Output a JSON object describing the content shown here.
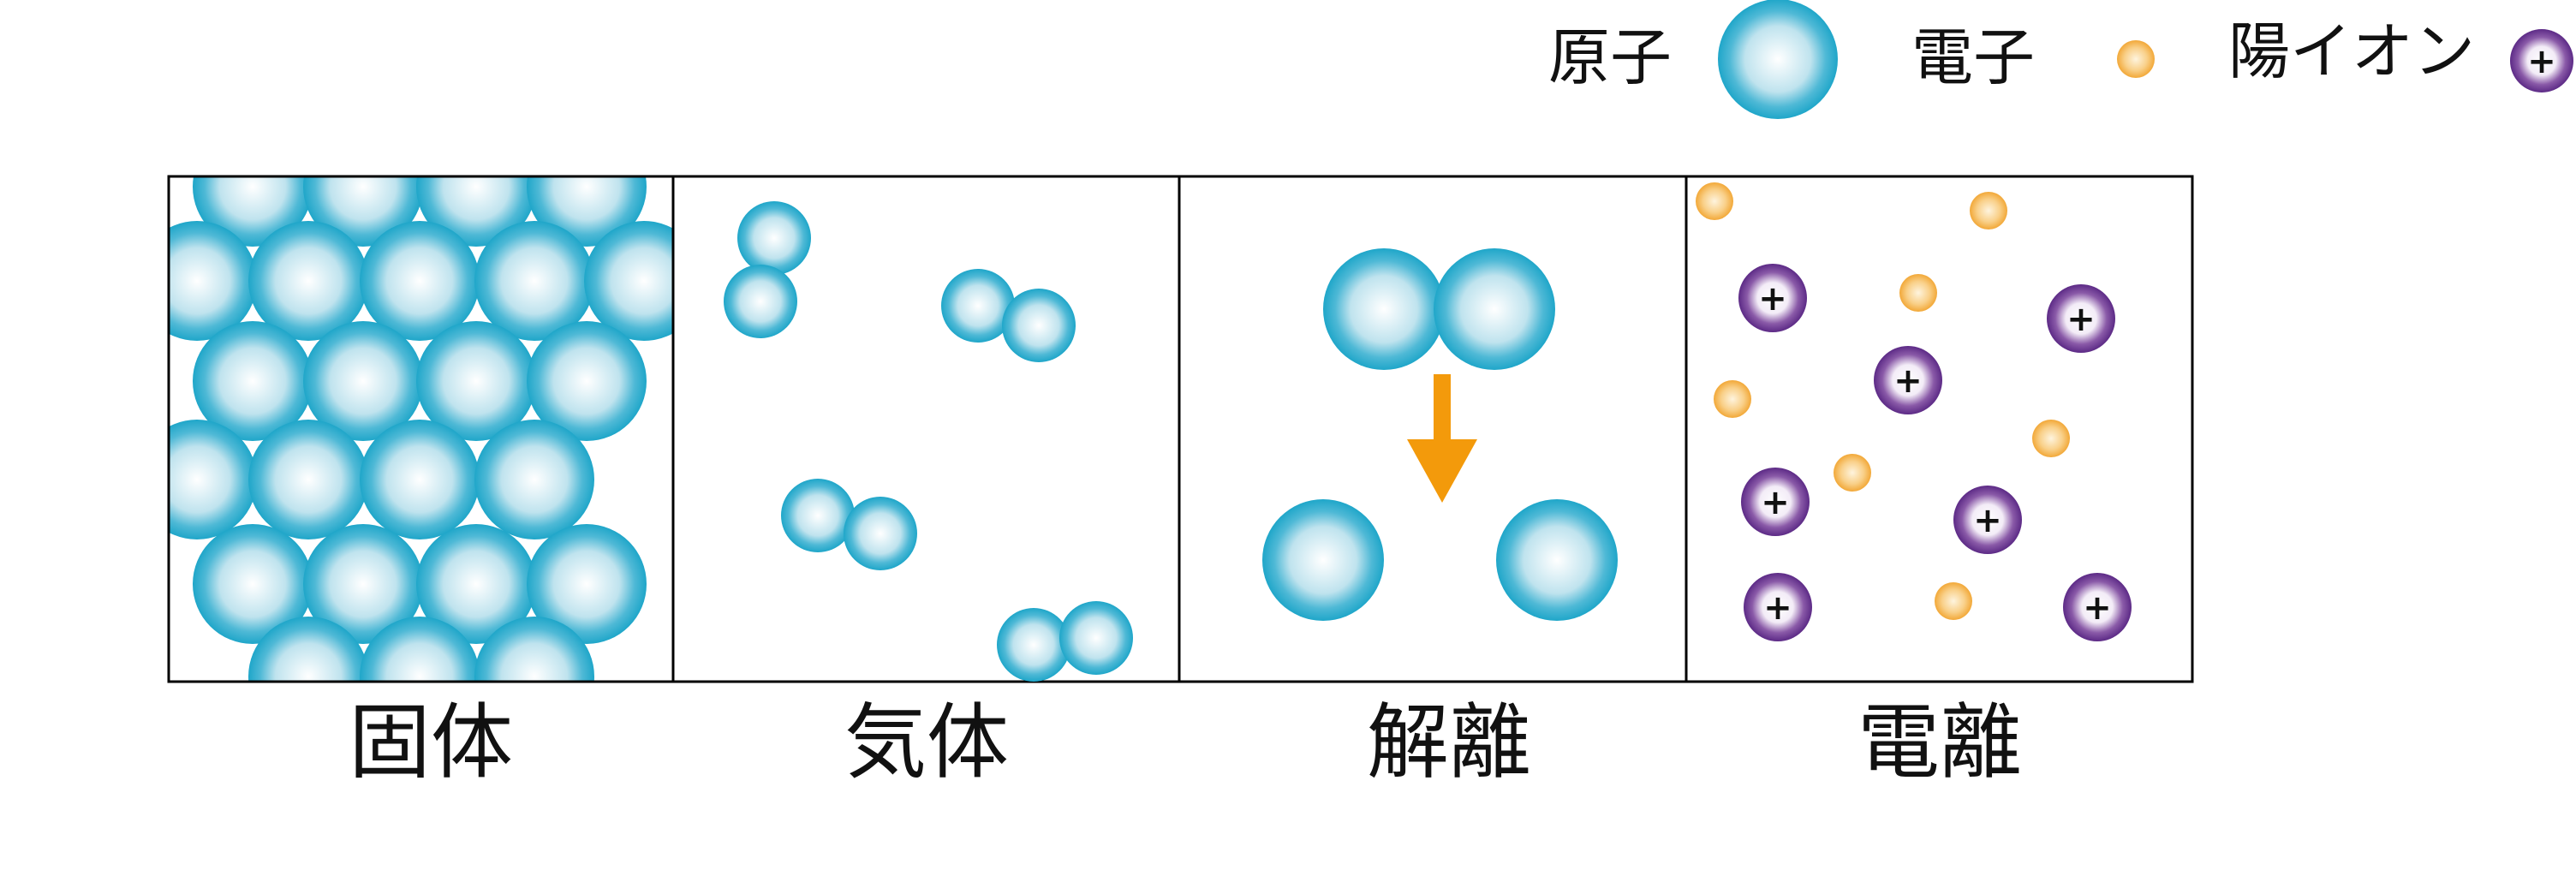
{
  "legend": {
    "atom_label": "原子",
    "electron_label": "電子",
    "cation_label": "陽イオン",
    "cation_symbol": "+"
  },
  "panels": [
    {
      "id": "solid",
      "label": "固体"
    },
    {
      "id": "gas",
      "label": "気体"
    },
    {
      "id": "dissociation",
      "label": "解離"
    },
    {
      "id": "ionization",
      "label": "電離"
    }
  ],
  "colors": {
    "atom_outer": "#1fa6c9",
    "atom_inner": "#ffffff",
    "electron_outer": "#f5b04a",
    "electron_inner": "#fde8c4",
    "cation_outer": "#5c2a86",
    "cation_inner": "#ffffff",
    "arrow": "#f39a0b",
    "frame": "#000000"
  },
  "icons": {
    "arrow": "down-arrow-icon"
  }
}
